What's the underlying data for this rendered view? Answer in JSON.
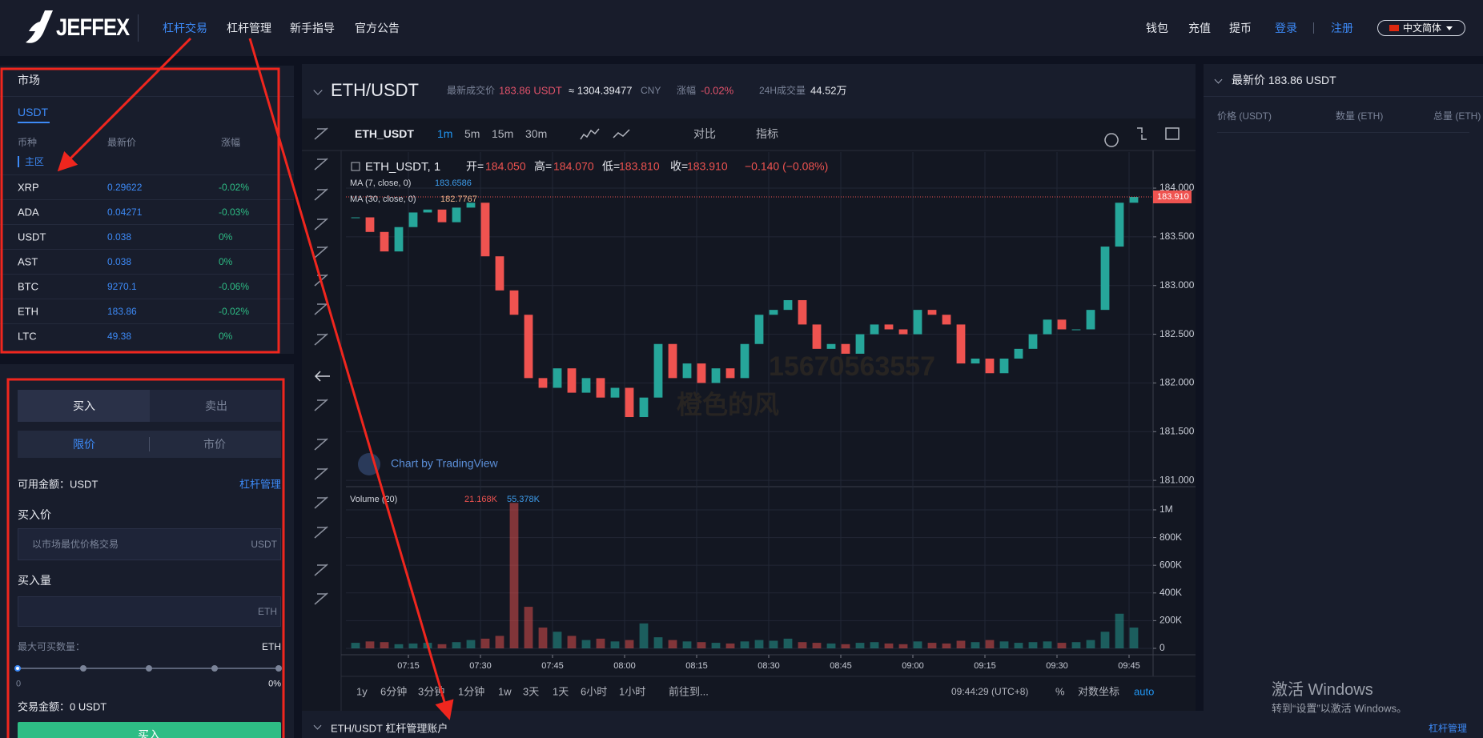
{
  "header": {
    "logo": "JEFFEX",
    "nav": [
      "杠杆交易",
      "杠杆管理",
      "新手指导",
      "官方公告"
    ],
    "links": [
      "钱包",
      "充值",
      "提币"
    ],
    "login": "登录",
    "register": "注册",
    "language": "中文简体"
  },
  "market": {
    "title": "市场",
    "tab": "USDT",
    "columns": [
      "币种",
      "最新价",
      "涨幅"
    ],
    "section": "主区",
    "rows": [
      [
        "XRP",
        "0.29622",
        "-0.02%"
      ],
      [
        "ADA",
        "0.04271",
        "-0.03%"
      ],
      [
        "USDT",
        "0.038",
        "0%"
      ],
      [
        "AST",
        "0.038",
        "0%"
      ],
      [
        "BTC",
        "9270.1",
        "-0.06%"
      ],
      [
        "ETH",
        "183.86",
        "-0.02%"
      ],
      [
        "LTC",
        "49.38",
        "0%"
      ]
    ]
  },
  "order": {
    "tabs": [
      "买入",
      "卖出"
    ],
    "types": [
      "限价",
      "市价"
    ],
    "available": "可用金额：USDT",
    "manage": "杠杆管理",
    "price_label": "买入价",
    "price_placeholder": "以市场最优价格交易",
    "price_unit": "USDT",
    "amount_label": "买入量",
    "amount_unit": "ETH",
    "max_label": "最大可买数量：",
    "max_unit": "ETH",
    "slider_min": "0",
    "slider_max": "0%",
    "total": "交易金额：0 USDT",
    "submit": "买入"
  },
  "ticker": {
    "pair": "ETH/USDT",
    "last_label": "最新成交价",
    "last": "183.86 USDT",
    "approx": "≈ 1304.39477",
    "cny": "CNY",
    "change_label": "涨幅",
    "change": "-0.02%",
    "volume_label": "24H成交量",
    "volume": "44.52万"
  },
  "toolbar": {
    "symbol": "ETH_USDT",
    "intervals": [
      "1m",
      "5m",
      "15m",
      "30m"
    ],
    "compare": "对比",
    "indicators": "指标"
  },
  "chart_data": {
    "type": "candlestick",
    "legend": {
      "symbol": "ETH_USDT, 1",
      "open_label": "开=",
      "open": "184.050",
      "high_label": "高=",
      "high": "184.070",
      "low_label": "低=",
      "low": "183.810",
      "close_label": "收=",
      "close": "183.910",
      "change": "−0.140 (−0.08%)",
      "ma7": "MA (7, close, 0)",
      "ma7_value": "183.6586",
      "ma30": "MA (30, close, 0)",
      "ma30_value": "182.7767",
      "volume": "Volume (20)",
      "volume_values": [
        "21.168K",
        "55.378K"
      ],
      "credit": "Chart by TradingView"
    },
    "x": [
      424,
      427,
      430,
      433,
      436,
      439,
      442,
      445,
      448,
      451,
      454,
      457,
      460,
      463,
      466,
      469,
      472,
      475,
      478,
      481,
      484,
      487,
      490,
      493,
      496,
      499,
      502,
      505,
      508,
      511,
      514,
      517,
      520,
      523,
      526,
      529,
      532,
      535,
      538,
      541,
      544,
      547,
      550,
      553,
      556,
      559,
      562,
      565,
      568,
      571,
      574,
      577,
      580,
      583,
      586
    ],
    "values": [
      183.7,
      183.55,
      183.35,
      183.6,
      183.75,
      183.78,
      183.65,
      183.8,
      183.85,
      183.3,
      182.95,
      182.7,
      182.05,
      181.95,
      182.15,
      181.9,
      182.05,
      181.85,
      181.95,
      181.65,
      181.85,
      182.4,
      182.05,
      182.2,
      182.0,
      182.15,
      182.05,
      182.4,
      182.7,
      182.75,
      182.85,
      182.6,
      182.35,
      182.4,
      182.3,
      182.5,
      182.6,
      182.55,
      182.5,
      182.75,
      182.7,
      182.6,
      182.2,
      182.25,
      182.1,
      182.25,
      182.35,
      182.5,
      182.65,
      182.55,
      182.55,
      182.75,
      183.4,
      183.85,
      183.91
    ],
    "xlim": [
      422,
      590
    ],
    "xticks": [
      {
        "value": 435,
        "label": "07:15"
      },
      {
        "value": 450,
        "label": "07:30"
      },
      {
        "value": 465,
        "label": "07:45"
      },
      {
        "value": 480,
        "label": "08:00"
      },
      {
        "value": 495,
        "label": "08:15"
      },
      {
        "value": 510,
        "label": "08:30"
      },
      {
        "value": 525,
        "label": "08:45"
      },
      {
        "value": 540,
        "label": "09:00"
      },
      {
        "value": 555,
        "label": "09:15"
      },
      {
        "value": 570,
        "label": "09:30"
      },
      {
        "value": 585,
        "label": "09:45"
      }
    ],
    "ylim": [
      180.96,
      184.37
    ],
    "yticks": [
      {
        "value": 184,
        "label": "184.000"
      },
      {
        "value": 183.5,
        "label": "183.500"
      },
      {
        "value": 183,
        "label": "183.000"
      },
      {
        "value": 182.5,
        "label": "182.500"
      },
      {
        "value": 182,
        "label": "182.000"
      },
      {
        "value": 181.5,
        "label": "181.500"
      },
      {
        "value": 181,
        "label": "181.000"
      }
    ],
    "last_price": {
      "value": 183.91,
      "label": "183.910"
    },
    "up_color": "#26a69a",
    "down_color": "#ef5350",
    "grid": true,
    "volume": {
      "values": [
        40000,
        50000,
        45000,
        30000,
        35000,
        40000,
        30000,
        45000,
        60000,
        70000,
        90000,
        1050000,
        300000,
        150000,
        120000,
        90000,
        60000,
        70000,
        50000,
        60000,
        180000,
        80000,
        60000,
        50000,
        45000,
        40000,
        35000,
        50000,
        60000,
        55000,
        70000,
        45000,
        40000,
        35000,
        30000,
        40000,
        45000,
        35000,
        30000,
        50000,
        40000,
        35000,
        55000,
        45000,
        60000,
        50000,
        40000,
        45000,
        50000,
        40000,
        45000,
        60000,
        120000,
        250000,
        150000
      ],
      "ylim": [
        0,
        1127000
      ],
      "yticks": [
        {
          "value": 1000000,
          "label": "1M"
        },
        {
          "value": 800000,
          "label": "800K"
        },
        {
          "value": 600000,
          "label": "600K"
        },
        {
          "value": 400000,
          "label": "400K"
        },
        {
          "value": 200000,
          "label": "200K"
        },
        0
      ]
    }
  },
  "bottom_toolbar": {
    "ranges": [
      "1y",
      "6分钟",
      "3分钟",
      "1分钟",
      "1w",
      "3天",
      "1天",
      "6小时",
      "1小时"
    ],
    "goto": "前往到...",
    "time": "09:44:29 (UTC+8)",
    "percent": "%",
    "log": "对数坐标",
    "auto": "auto"
  },
  "orderbook": {
    "title": "最新价 183.86 USDT",
    "columns": [
      "价格 (USDT)",
      "数量 (ETH)",
      "总量 (ETH)"
    ]
  },
  "account": {
    "title": "ETH/USDT 杠杆管理账户",
    "link": "杠杆管理"
  },
  "watermark": [
    "15670563557",
    "橙色的风"
  ],
  "windows": [
    "激活 Windows",
    "转到“设置”以激活 Windows。"
  ]
}
